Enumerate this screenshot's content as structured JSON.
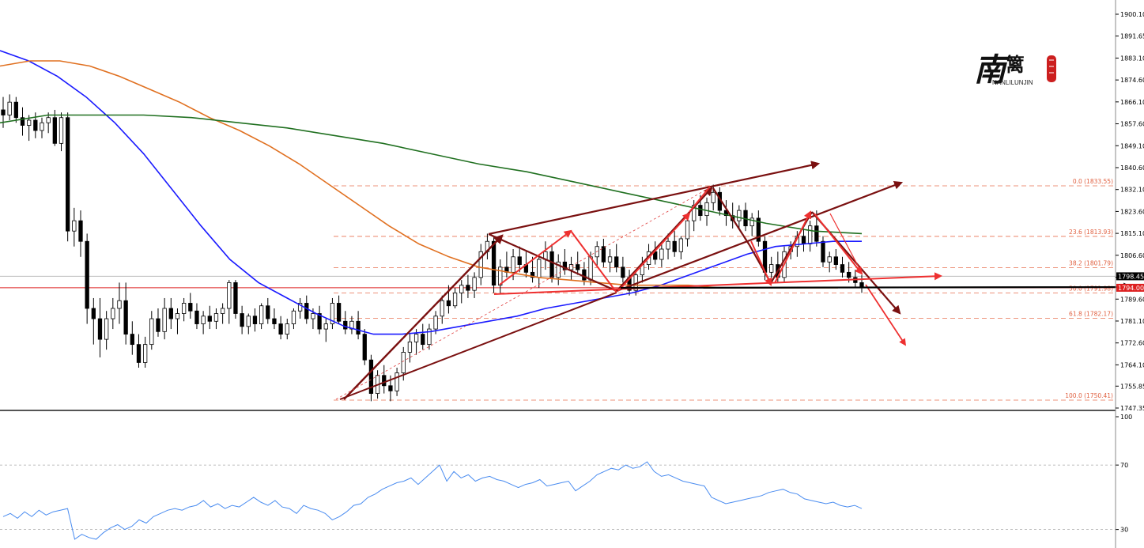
{
  "chart_data": [
    {
      "type": "candlestick",
      "title": "",
      "xlabel": "",
      "ylabel": "",
      "ylim": [
        1747.35,
        1900.1
      ],
      "y_ticks": [
        "1900.10",
        "1891.65",
        "1883.10",
        "1874.60",
        "1866.10",
        "1857.60",
        "1849.10",
        "1840.60",
        "1832.10",
        "1823.60",
        "1815.10",
        "1806.60",
        "1798.10",
        "1789.60",
        "1781.10",
        "1772.60",
        "1764.10",
        "1755.85",
        "1747.35"
      ],
      "price_tags": [
        {
          "label": "1798.45",
          "value": 1798.45,
          "color": "#000000"
        },
        {
          "label": "1794.00",
          "value": 1794.0,
          "color": "#dd2020"
        }
      ],
      "horizontal_lines": [
        {
          "name": "price-line",
          "value": 1798.45,
          "color": "#bbbbbb"
        },
        {
          "name": "red-level",
          "value": 1794.0,
          "color": "#dd2020"
        }
      ],
      "fibonacci": [
        {
          "label": "0.0 (1833.55)",
          "value": 1833.55
        },
        {
          "label": "23.6 (1813.93)",
          "value": 1813.93
        },
        {
          "label": "38.2 (1801.79)",
          "value": 1801.79
        },
        {
          "label": "50.0 (1791.98)",
          "value": 1791.98
        },
        {
          "label": "61.8 (1782.17)",
          "value": 1782.17
        },
        {
          "label": "100.0 (1750.41)",
          "value": 1750.41
        }
      ],
      "candles": [
        [
          1863,
          1868,
          1856,
          1861
        ],
        [
          1861,
          1869,
          1859,
          1866
        ],
        [
          1866,
          1868,
          1858,
          1860
        ],
        [
          1860,
          1864,
          1853,
          1857
        ],
        [
          1857,
          1861,
          1851,
          1859
        ],
        [
          1859,
          1862,
          1852,
          1855
        ],
        [
          1855,
          1860,
          1852,
          1858
        ],
        [
          1858,
          1862,
          1854,
          1860
        ],
        [
          1860,
          1863,
          1849,
          1850
        ],
        [
          1850,
          1862,
          1847,
          1860
        ],
        [
          1860,
          1862,
          1812,
          1816
        ],
        [
          1816,
          1825,
          1810,
          1820
        ],
        [
          1820,
          1824,
          1806,
          1812
        ],
        [
          1812,
          1815,
          1780,
          1786
        ],
        [
          1786,
          1790,
          1772,
          1782
        ],
        [
          1782,
          1790,
          1767,
          1774
        ],
        [
          1774,
          1785,
          1770,
          1782
        ],
        [
          1782,
          1790,
          1778,
          1786
        ],
        [
          1786,
          1796,
          1780,
          1789
        ],
        [
          1789,
          1796,
          1772,
          1776
        ],
        [
          1776,
          1781,
          1768,
          1772
        ],
        [
          1772,
          1776,
          1763,
          1765
        ],
        [
          1765,
          1775,
          1763,
          1772
        ],
        [
          1772,
          1785,
          1770,
          1782
        ],
        [
          1782,
          1786,
          1775,
          1777
        ],
        [
          1777,
          1790,
          1774,
          1786
        ],
        [
          1786,
          1790,
          1778,
          1782
        ],
        [
          1782,
          1786,
          1776,
          1784
        ],
        [
          1784,
          1790,
          1781,
          1788
        ],
        [
          1788,
          1792,
          1782,
          1785
        ],
        [
          1785,
          1788,
          1778,
          1780
        ],
        [
          1780,
          1785,
          1776,
          1783
        ],
        [
          1783,
          1787,
          1778,
          1781
        ],
        [
          1781,
          1786,
          1778,
          1784
        ],
        [
          1784,
          1788,
          1780,
          1786
        ],
        [
          1786,
          1797,
          1780,
          1796
        ],
        [
          1796,
          1797,
          1782,
          1784
        ],
        [
          1784,
          1787,
          1776,
          1779
        ],
        [
          1779,
          1784,
          1776,
          1783
        ],
        [
          1783,
          1786,
          1777,
          1780
        ],
        [
          1780,
          1788,
          1778,
          1787
        ],
        [
          1787,
          1790,
          1780,
          1782
        ],
        [
          1782,
          1786,
          1778,
          1780
        ],
        [
          1780,
          1783,
          1774,
          1776
        ],
        [
          1776,
          1782,
          1774,
          1780
        ],
        [
          1780,
          1786,
          1778,
          1785
        ],
        [
          1785,
          1790,
          1782,
          1788
        ],
        [
          1788,
          1791,
          1780,
          1782
        ],
        [
          1782,
          1786,
          1778,
          1784
        ],
        [
          1784,
          1787,
          1776,
          1778
        ],
        [
          1778,
          1782,
          1773,
          1780
        ],
        [
          1780,
          1790,
          1778,
          1788
        ],
        [
          1788,
          1791,
          1780,
          1781
        ],
        [
          1781,
          1785,
          1776,
          1778
        ],
        [
          1778,
          1783,
          1776,
          1781
        ],
        [
          1781,
          1785,
          1774,
          1776
        ],
        [
          1776,
          1778,
          1764,
          1766
        ],
        [
          1766,
          1768,
          1750,
          1753
        ],
        [
          1753,
          1762,
          1751,
          1760
        ],
        [
          1760,
          1764,
          1753,
          1756
        ],
        [
          1756,
          1760,
          1750,
          1754
        ],
        [
          1754,
          1763,
          1752,
          1761
        ],
        [
          1761,
          1771,
          1758,
          1769
        ],
        [
          1769,
          1776,
          1765,
          1773
        ],
        [
          1773,
          1778,
          1768,
          1776
        ],
        [
          1776,
          1780,
          1770,
          1772
        ],
        [
          1772,
          1780,
          1770,
          1778
        ],
        [
          1778,
          1785,
          1776,
          1783
        ],
        [
          1783,
          1791,
          1780,
          1789
        ],
        [
          1789,
          1795,
          1784,
          1787
        ],
        [
          1787,
          1794,
          1786,
          1792
        ],
        [
          1792,
          1797,
          1788,
          1795
        ],
        [
          1795,
          1799,
          1790,
          1793
        ],
        [
          1793,
          1800,
          1790,
          1798
        ],
        [
          1798,
          1811,
          1795,
          1808
        ],
        [
          1808,
          1815,
          1805,
          1812
        ],
        [
          1812,
          1814,
          1792,
          1795
        ],
        [
          1795,
          1805,
          1792,
          1802
        ],
        [
          1802,
          1808,
          1798,
          1800
        ],
        [
          1800,
          1809,
          1797,
          1806
        ],
        [
          1806,
          1810,
          1800,
          1803
        ],
        [
          1803,
          1808,
          1798,
          1800
        ],
        [
          1800,
          1806,
          1796,
          1798
        ],
        [
          1798,
          1807,
          1794,
          1805
        ],
        [
          1805,
          1812,
          1801,
          1808
        ],
        [
          1808,
          1811,
          1796,
          1798
        ],
        [
          1798,
          1807,
          1795,
          1804
        ],
        [
          1804,
          1809,
          1799,
          1801
        ],
        [
          1801,
          1806,
          1797,
          1803
        ],
        [
          1803,
          1808,
          1799,
          1801
        ],
        [
          1801,
          1804,
          1795,
          1797
        ],
        [
          1797,
          1808,
          1795,
          1806
        ],
        [
          1806,
          1812,
          1802,
          1810
        ],
        [
          1810,
          1813,
          1802,
          1804
        ],
        [
          1804,
          1809,
          1800,
          1806
        ],
        [
          1806,
          1811,
          1800,
          1802
        ],
        [
          1802,
          1806,
          1796,
          1798
        ],
        [
          1798,
          1801,
          1791,
          1793
        ],
        [
          1793,
          1800,
          1791,
          1799
        ],
        [
          1799,
          1806,
          1796,
          1803
        ],
        [
          1803,
          1811,
          1801,
          1808
        ],
        [
          1808,
          1812,
          1803,
          1805
        ],
        [
          1805,
          1811,
          1802,
          1809
        ],
        [
          1809,
          1815,
          1805,
          1812
        ],
        [
          1812,
          1816,
          1806,
          1808
        ],
        [
          1808,
          1814,
          1805,
          1813
        ],
        [
          1813,
          1822,
          1810,
          1820
        ],
        [
          1820,
          1828,
          1816,
          1826
        ],
        [
          1826,
          1830,
          1820,
          1822
        ],
        [
          1822,
          1829,
          1818,
          1827
        ],
        [
          1827,
          1834,
          1824,
          1831
        ],
        [
          1831,
          1833,
          1822,
          1824
        ],
        [
          1824,
          1828,
          1818,
          1822
        ],
        [
          1822,
          1827,
          1817,
          1820
        ],
        [
          1820,
          1826,
          1817,
          1824
        ],
        [
          1824,
          1827,
          1816,
          1818
        ],
        [
          1818,
          1823,
          1814,
          1821
        ],
        [
          1821,
          1824,
          1810,
          1812
        ],
        [
          1812,
          1814,
          1797,
          1800
        ],
        [
          1800,
          1806,
          1797,
          1803
        ],
        [
          1803,
          1808,
          1796,
          1798
        ],
        [
          1798,
          1810,
          1796,
          1808
        ],
        [
          1808,
          1812,
          1805,
          1810
        ],
        [
          1810,
          1816,
          1806,
          1814
        ],
        [
          1814,
          1817,
          1808,
          1811
        ],
        [
          1811,
          1820,
          1808,
          1818
        ],
        [
          1818,
          1824,
          1810,
          1812
        ],
        [
          1812,
          1814,
          1802,
          1804
        ],
        [
          1804,
          1808,
          1800,
          1806
        ],
        [
          1806,
          1809,
          1801,
          1803
        ],
        [
          1803,
          1806,
          1798,
          1800
        ],
        [
          1800,
          1804,
          1796,
          1798
        ],
        [
          1798,
          1801,
          1794,
          1796
        ],
        [
          1796,
          1799,
          1792,
          1794
        ]
      ],
      "moving_averages": [
        {
          "name": "ma-blue",
          "color": "#1a1aff",
          "values": [
            1886,
            1882,
            1876,
            1868,
            1858,
            1846,
            1832,
            1818,
            1805,
            1796,
            1790,
            1784,
            1779,
            1776,
            1776,
            1777,
            1779,
            1781,
            1783,
            1786,
            1788,
            1790,
            1792,
            1795,
            1799,
            1803,
            1807,
            1810,
            1811,
            1812,
            1812
          ]
        },
        {
          "name": "ma-orange",
          "color": "#e07020",
          "values": [
            1880,
            1882,
            1882,
            1880,
            1876,
            1871,
            1866,
            1860,
            1855,
            1849,
            1842,
            1834,
            1826,
            1818,
            1811,
            1806,
            1802,
            1800,
            1798,
            1797,
            1796,
            1795,
            1795,
            1795,
            1794,
            1794,
            1794,
            1794,
            1794
          ]
        },
        {
          "name": "ma-green",
          "color": "#207020",
          "values": [
            1858,
            1861,
            1861,
            1861,
            1860,
            1858,
            1856,
            1853,
            1850,
            1846,
            1842,
            1839,
            1835,
            1831,
            1827,
            1823,
            1819,
            1816,
            1815
          ]
        }
      ]
    },
    {
      "type": "line",
      "name": "oscillator",
      "title": "",
      "ylim": [
        20,
        100
      ],
      "y_ticks": [
        "100",
        "70",
        "30"
      ],
      "levels": [
        70,
        30
      ],
      "color": "#4a8cf0",
      "values": [
        38,
        40,
        37,
        41,
        38,
        42,
        39,
        41,
        42,
        43,
        24,
        27,
        25,
        24,
        28,
        31,
        33,
        30,
        32,
        36,
        34,
        38,
        40,
        42,
        43,
        42,
        44,
        45,
        48,
        44,
        46,
        43,
        45,
        44,
        47,
        50,
        47,
        45,
        48,
        44,
        43,
        40,
        45,
        43,
        42,
        40,
        36,
        38,
        41,
        45,
        46,
        50,
        52,
        55,
        57,
        59,
        60,
        62,
        58,
        62,
        66,
        70,
        60,
        66,
        62,
        64,
        60,
        62,
        63,
        61,
        60,
        58,
        56,
        58,
        59,
        61,
        57,
        58,
        59,
        60,
        54,
        57,
        60,
        64,
        66,
        68,
        67,
        70,
        68,
        69,
        72,
        66,
        63,
        64,
        62,
        60,
        59,
        58,
        57,
        50,
        48,
        46,
        47,
        48,
        49,
        50,
        51,
        53,
        54,
        55,
        53,
        52,
        49,
        48,
        47,
        46,
        47,
        45,
        44,
        45,
        43
      ]
    }
  ],
  "logo": {
    "text": "南篱",
    "subtitle": "NANLILUNJIN"
  }
}
